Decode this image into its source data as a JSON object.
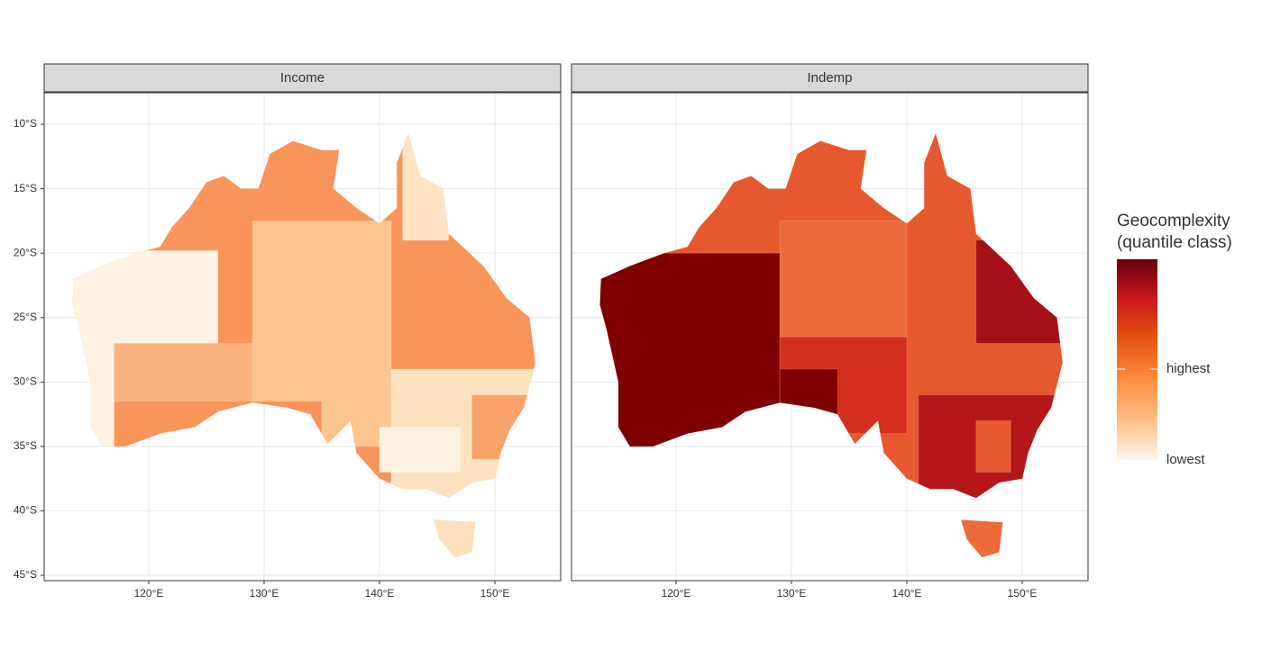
{
  "chart_data": {
    "type": "map",
    "panels": [
      {
        "title": "Income",
        "base_color": "#f9955a"
      },
      {
        "title": "Indemp",
        "base_color": "#e8582f"
      }
    ],
    "xlim": [
      110.94,
      155.7
    ],
    "ylim": [
      -45.42,
      -7.55
    ],
    "xticks": [
      {
        "value": 120,
        "label": "120°E"
      },
      {
        "value": 130,
        "label": "130°E"
      },
      {
        "value": 140,
        "label": "140°E"
      },
      {
        "value": 150,
        "label": "150°E"
      }
    ],
    "yticks": [
      {
        "value": -10,
        "label": "10°S"
      },
      {
        "value": -15,
        "label": "15°S"
      },
      {
        "value": -20,
        "label": "20°S"
      },
      {
        "value": -25,
        "label": "25°S"
      },
      {
        "value": -30,
        "label": "30°S"
      },
      {
        "value": -35,
        "label": "35°S"
      },
      {
        "value": -40,
        "label": "40°S"
      },
      {
        "value": -45,
        "label": "45°S"
      }
    ],
    "grid": true,
    "legend": {
      "title": [
        "Geocomplexity",
        "(quantile class)"
      ],
      "labels": [
        "highest",
        "lowest"
      ],
      "colors": [
        "#fff5eb",
        "#fdbe85",
        "#fd8d3c",
        "#e6550d",
        "#cb181d",
        "#67000d"
      ]
    }
  }
}
